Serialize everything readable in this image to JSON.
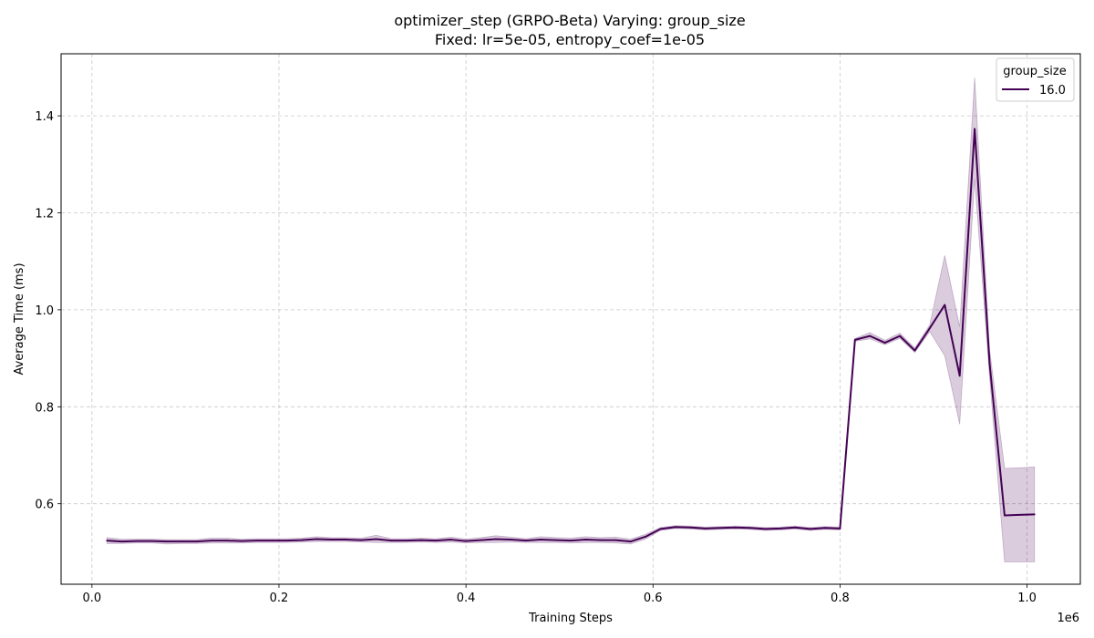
{
  "chart_data": {
    "type": "line",
    "title_line1": "optimizer_step (GRPO-Beta) Varying: group_size",
    "title_line2": "Fixed: lr=5e-05, entropy_coef=1e-05",
    "xlabel": "Training Steps",
    "ylabel": "Average Time (ms)",
    "x_offset_label": "1e6",
    "xlim": [
      -0.033,
      1.057
    ],
    "ylim": [
      0.434,
      1.528
    ],
    "x_ticks": [
      0.0,
      0.2,
      0.4,
      0.6,
      0.8,
      1.0
    ],
    "x_tick_labels": [
      "0.0",
      "0.2",
      "0.4",
      "0.6",
      "0.8",
      "1.0"
    ],
    "y_ticks": [
      0.6,
      0.8,
      1.0,
      1.2,
      1.4
    ],
    "y_tick_labels": [
      "0.6",
      "0.8",
      "1.0",
      "1.2",
      "1.4"
    ],
    "grid": true,
    "legend": {
      "title": "group_size",
      "placement": "top-right",
      "entries": [
        "16.0"
      ]
    },
    "colors": {
      "line": "#440154",
      "band": "#440154",
      "grid": "#b0b0b0"
    },
    "series": [
      {
        "name": "16.0",
        "x": [
          0.016,
          0.032,
          0.048,
          0.064,
          0.08,
          0.096,
          0.112,
          0.128,
          0.144,
          0.16,
          0.176,
          0.192,
          0.208,
          0.224,
          0.24,
          0.256,
          0.272,
          0.288,
          0.304,
          0.32,
          0.336,
          0.352,
          0.368,
          0.384,
          0.4,
          0.416,
          0.432,
          0.448,
          0.464,
          0.48,
          0.496,
          0.512,
          0.528,
          0.544,
          0.56,
          0.576,
          0.592,
          0.608,
          0.624,
          0.64,
          0.656,
          0.672,
          0.688,
          0.704,
          0.72,
          0.736,
          0.752,
          0.768,
          0.784,
          0.8,
          0.816,
          0.832,
          0.848,
          0.864,
          0.88,
          0.896,
          0.912,
          0.928,
          0.944,
          0.96,
          0.976,
          0.992,
          1.008
        ],
        "y": [
          0.524,
          0.522,
          0.523,
          0.523,
          0.522,
          0.522,
          0.522,
          0.524,
          0.524,
          0.523,
          0.524,
          0.524,
          0.524,
          0.525,
          0.527,
          0.526,
          0.526,
          0.525,
          0.527,
          0.524,
          0.524,
          0.525,
          0.524,
          0.526,
          0.523,
          0.525,
          0.527,
          0.526,
          0.524,
          0.526,
          0.525,
          0.524,
          0.526,
          0.525,
          0.525,
          0.522,
          0.532,
          0.548,
          0.552,
          0.551,
          0.549,
          0.55,
          0.551,
          0.55,
          0.548,
          0.549,
          0.551,
          0.548,
          0.55,
          0.549,
          0.938,
          0.946,
          0.932,
          0.946,
          0.916,
          0.962,
          1.01,
          0.864,
          1.373,
          0.889,
          0.576,
          0.577,
          0.578
        ],
        "lower": [
          0.518,
          0.518,
          0.519,
          0.519,
          0.517,
          0.518,
          0.518,
          0.519,
          0.519,
          0.519,
          0.52,
          0.52,
          0.52,
          0.521,
          0.522,
          0.522,
          0.522,
          0.521,
          0.52,
          0.52,
          0.52,
          0.521,
          0.52,
          0.521,
          0.519,
          0.52,
          0.52,
          0.521,
          0.52,
          0.52,
          0.52,
          0.519,
          0.52,
          0.52,
          0.519,
          0.517,
          0.527,
          0.545,
          0.549,
          0.548,
          0.546,
          0.547,
          0.548,
          0.547,
          0.545,
          0.546,
          0.548,
          0.545,
          0.547,
          0.546,
          0.935,
          0.94,
          0.928,
          0.941,
          0.912,
          0.955,
          0.905,
          0.764,
          1.27,
          0.86,
          0.48,
          0.48,
          0.48
        ],
        "upper": [
          0.53,
          0.527,
          0.527,
          0.527,
          0.526,
          0.526,
          0.526,
          0.529,
          0.529,
          0.527,
          0.528,
          0.528,
          0.528,
          0.529,
          0.532,
          0.53,
          0.53,
          0.529,
          0.535,
          0.528,
          0.528,
          0.529,
          0.528,
          0.531,
          0.527,
          0.53,
          0.534,
          0.531,
          0.528,
          0.532,
          0.53,
          0.529,
          0.532,
          0.53,
          0.531,
          0.527,
          0.537,
          0.551,
          0.555,
          0.554,
          0.552,
          0.553,
          0.554,
          0.553,
          0.551,
          0.552,
          0.554,
          0.551,
          0.553,
          0.552,
          0.941,
          0.953,
          0.937,
          0.952,
          0.921,
          0.969,
          1.112,
          0.965,
          1.479,
          0.918,
          0.673,
          0.674,
          0.676
        ]
      }
    ]
  }
}
